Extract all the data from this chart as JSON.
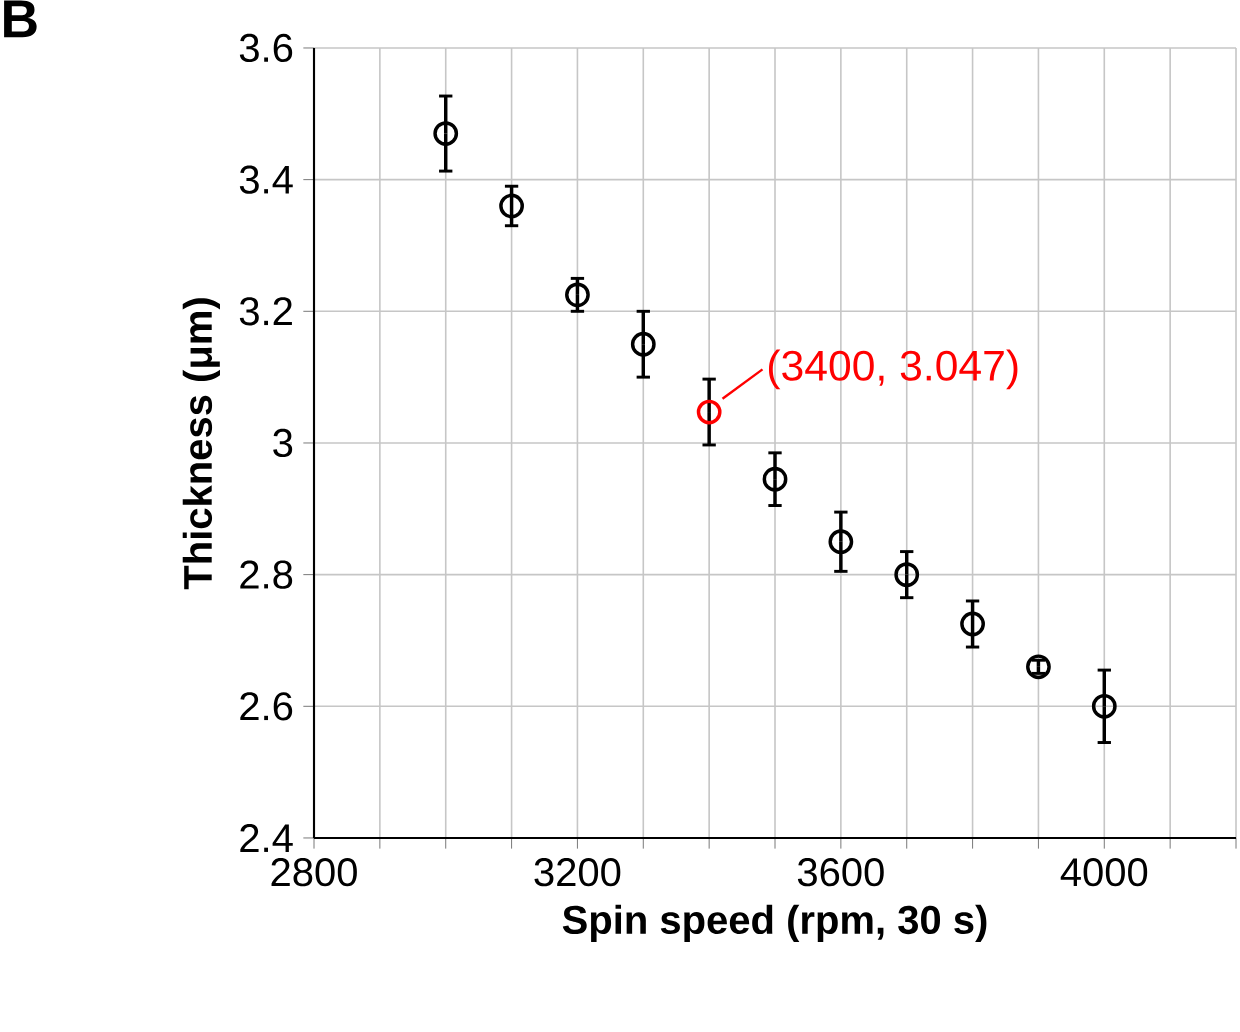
{
  "chart_data": {
    "type": "scatter",
    "xlabel": "Spin speed (rpm, 30 s)",
    "ylabel": "Thickness (μm)",
    "x": [
      3000,
      3100,
      3200,
      3300,
      3400,
      3500,
      3600,
      3700,
      3800,
      3900,
      4000
    ],
    "values": [
      3.47,
      3.36,
      3.225,
      3.15,
      3.047,
      2.945,
      2.85,
      2.8,
      2.725,
      2.66,
      2.6
    ],
    "errors": [
      0.057,
      0.03,
      0.025,
      0.05,
      0.05,
      0.04,
      0.045,
      0.035,
      0.035,
      0.01,
      0.055
    ],
    "colors": [
      "#000000",
      "#000000",
      "#000000",
      "#000000",
      "#ff0000",
      "#000000",
      "#000000",
      "#000000",
      "#000000",
      "#000000",
      "#000000"
    ],
    "xlim": [
      2800,
      4200
    ],
    "xticks": [
      2800,
      {
        "value": 2900,
        "label": null
      },
      {
        "value": 3000,
        "label": null
      },
      {
        "value": 3100,
        "label": null
      },
      3200,
      {
        "value": 3300,
        "label": null
      },
      {
        "value": 3400,
        "label": null
      },
      {
        "value": 3500,
        "label": null
      },
      3600,
      {
        "value": 3700,
        "label": null
      },
      {
        "value": 3800,
        "label": null
      },
      {
        "value": 3900,
        "label": null
      },
      4000,
      {
        "value": 4100,
        "label": null
      },
      {
        "value": 4200,
        "label": null
      }
    ],
    "ylim": [
      2.4,
      3.6
    ],
    "yticks": [
      2.4,
      2.6,
      2.8,
      3,
      3.2,
      3.4,
      3.6
    ],
    "grid": true,
    "marker": "circle",
    "annotations": [
      "B",
      {
        "text": "(3400, 3.047)",
        "x": 3400,
        "y": 3.047
      }
    ]
  }
}
